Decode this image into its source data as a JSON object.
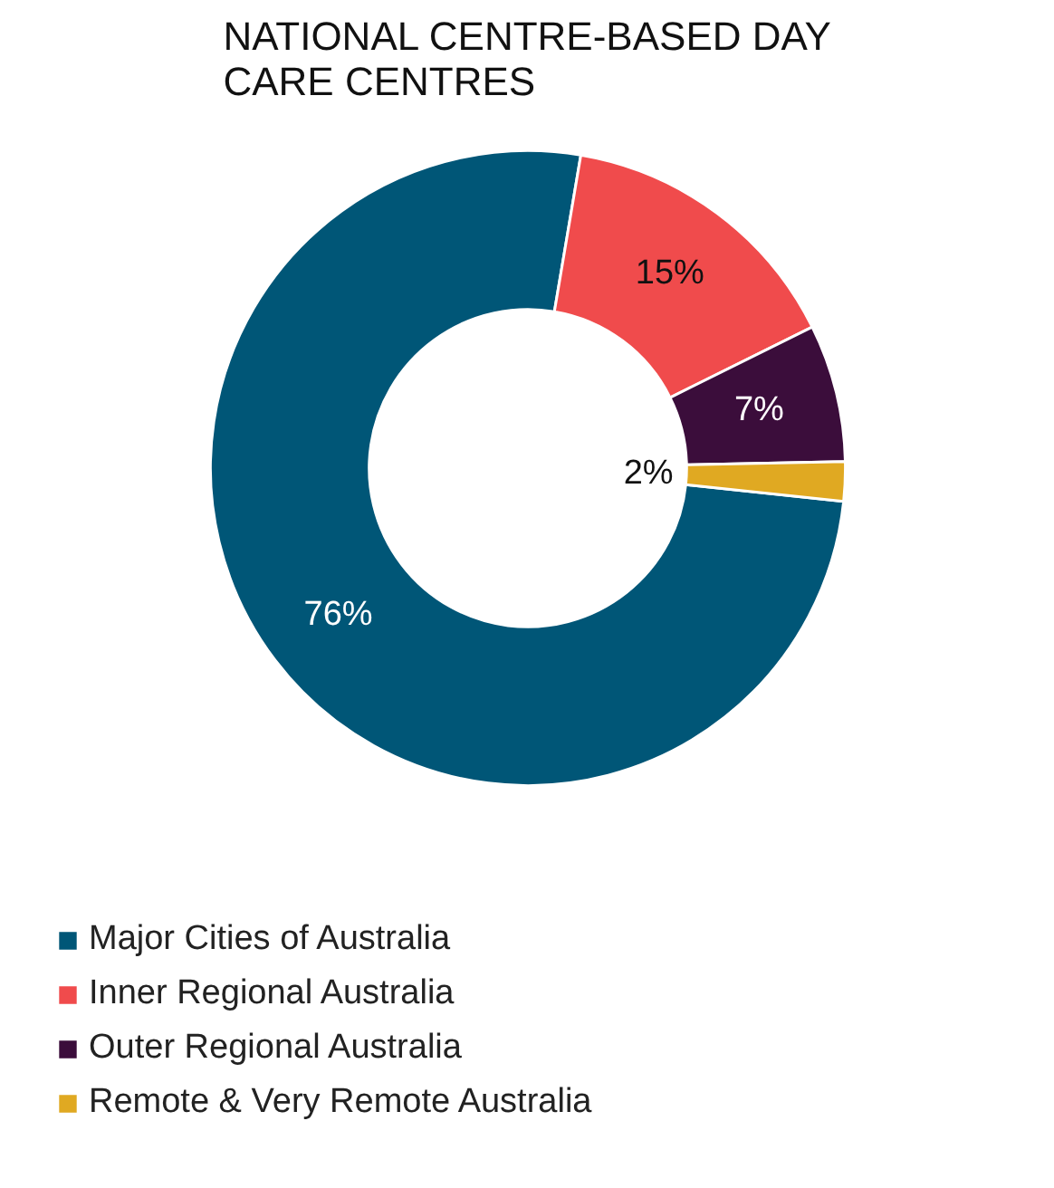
{
  "chart_data": {
    "type": "donut",
    "title": "NATIONAL CENTRE-BASED DAY\nCARE CENTRES",
    "categories": [
      "Major Cities of Australia",
      "Inner Regional Australia",
      "Outer Regional Australia",
      "Remote & Very Remote Australia"
    ],
    "values": [
      76,
      15,
      7,
      2
    ],
    "colors": [
      "#005677",
      "#f04b4c",
      "#3b0d3b",
      "#e0a922"
    ],
    "value_labels": [
      "76%",
      "15%",
      "7%",
      "2%"
    ],
    "legend": "bottom left"
  }
}
